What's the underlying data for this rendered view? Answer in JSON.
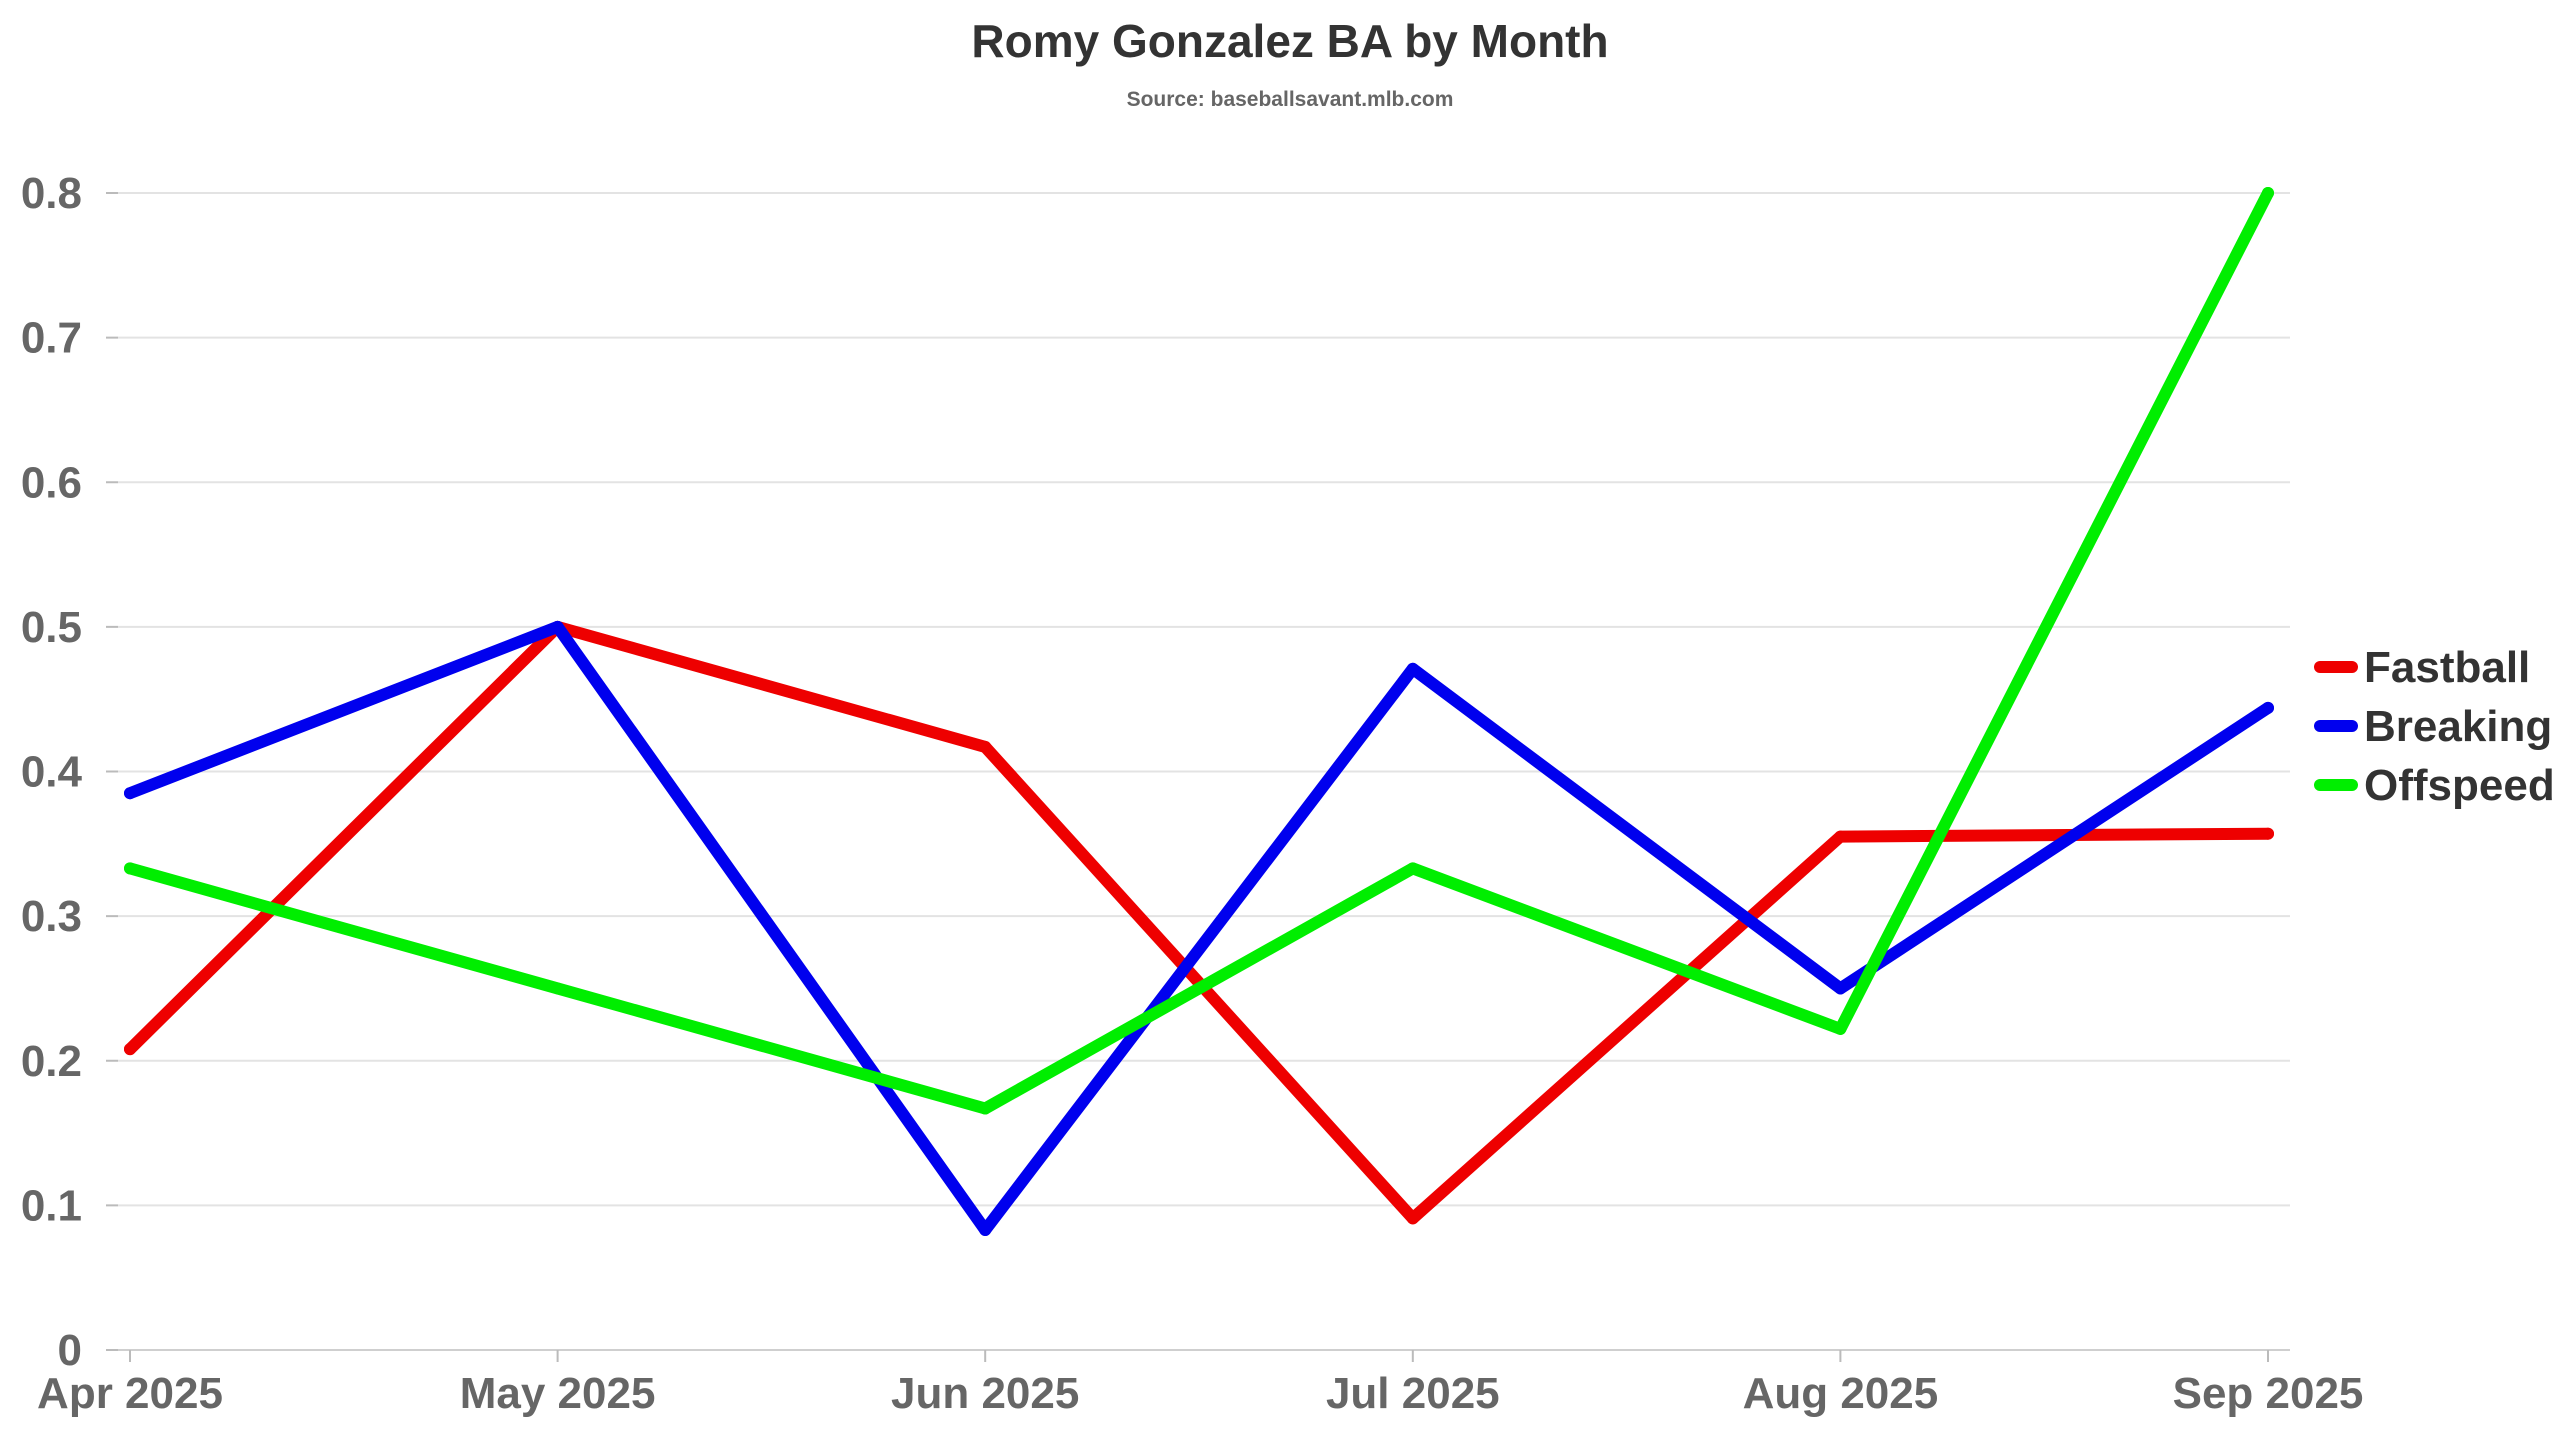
{
  "chart_data": {
    "type": "line",
    "title": "Romy Gonzalez BA by Month",
    "subtitle": "Source: baseballsavant.mlb.com",
    "xlabel": "",
    "ylabel": "",
    "categories": [
      "Apr 2025",
      "May 2025",
      "Jun 2025",
      "Jul 2025",
      "Aug 2025",
      "Sep 2025"
    ],
    "ylim": [
      0,
      0.8
    ],
    "yticks": [
      "0",
      "0.1",
      "0.2",
      "0.3",
      "0.4",
      "0.5",
      "0.6",
      "0.7",
      "0.8"
    ],
    "grid": true,
    "legend_position": "right",
    "series": [
      {
        "name": "Fastball",
        "color": "#ee0000",
        "values": [
          0.208,
          0.5,
          0.417,
          0.091,
          0.355,
          0.357
        ]
      },
      {
        "name": "Breaking",
        "color": "#0000ee",
        "values": [
          0.385,
          0.5,
          0.083,
          0.471,
          0.25,
          0.444
        ]
      },
      {
        "name": "Offspeed",
        "color": "#00ee00",
        "values": [
          0.333,
          0.25,
          0.167,
          0.333,
          0.222,
          0.8
        ]
      }
    ]
  }
}
